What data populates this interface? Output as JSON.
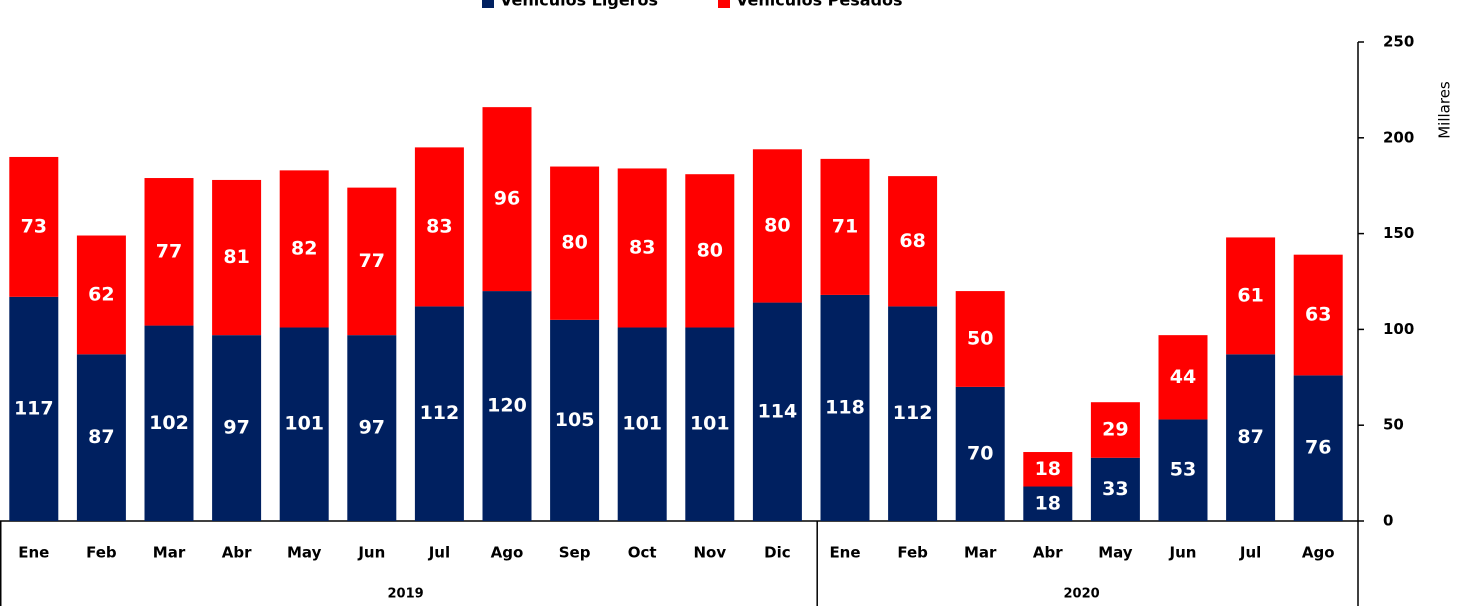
{
  "chart_data": {
    "type": "stacked_bar",
    "legend": "top",
    "y_axis_side": "right",
    "y_label": "Millares",
    "groups": [
      {
        "label": "2019",
        "categories": [
          "Ene",
          "Feb",
          "Mar",
          "Abr",
          "May",
          "Jun",
          "Jul",
          "Ago",
          "Sep",
          "Oct",
          "Nov",
          "Dic"
        ]
      },
      {
        "label": "2020",
        "categories": [
          "Ene",
          "Feb",
          "Mar",
          "Abr",
          "May",
          "Jun",
          "Jul",
          "Ago"
        ]
      }
    ],
    "series": [
      {
        "name": "Vehículos Ligeros",
        "color": "#002060",
        "values": [
          117,
          87,
          102,
          97,
          101,
          97,
          112,
          120,
          105,
          101,
          101,
          114,
          118,
          112,
          70,
          18,
          33,
          53,
          87,
          76
        ]
      },
      {
        "name": "Vehículos Pesados",
        "color": "#ff0000",
        "values": [
          73,
          62,
          77,
          81,
          82,
          77,
          83,
          96,
          80,
          83,
          80,
          80,
          71,
          68,
          50,
          18,
          29,
          44,
          61,
          63
        ]
      }
    ],
    "ylim": [
      0,
      250
    ],
    "yticks": [
      0,
      50,
      100,
      150,
      200,
      250
    ],
    "grid": false
  }
}
